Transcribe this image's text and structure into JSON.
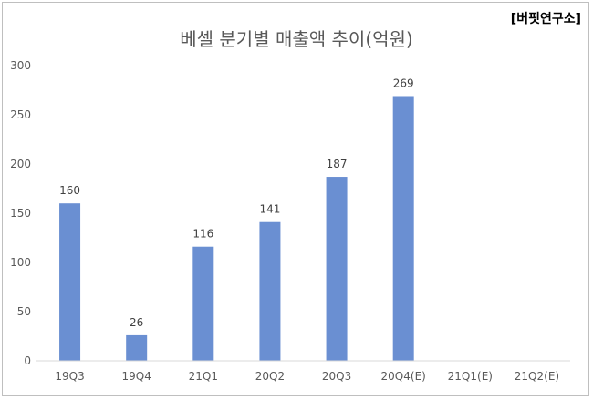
{
  "source_label": "[버핏연구소]",
  "chart_data": {
    "type": "bar",
    "title": "베셀 분기별 매출액 추이(억원)",
    "categories": [
      "19Q3",
      "19Q4",
      "21Q1",
      "20Q2",
      "20Q3",
      "20Q4(E)",
      "21Q1(E)",
      "21Q2(E)"
    ],
    "values": [
      160,
      26,
      116,
      141,
      187,
      269,
      null,
      null
    ],
    "data_labels": [
      "160",
      "26",
      "116",
      "141",
      "187",
      "269",
      "",
      ""
    ],
    "y_ticks": [
      "0",
      "50",
      "100",
      "150",
      "200",
      "250",
      "300"
    ],
    "ylim": [
      0,
      300
    ],
    "grid": false,
    "legend": false,
    "bar_color": "#6a8fd2"
  }
}
